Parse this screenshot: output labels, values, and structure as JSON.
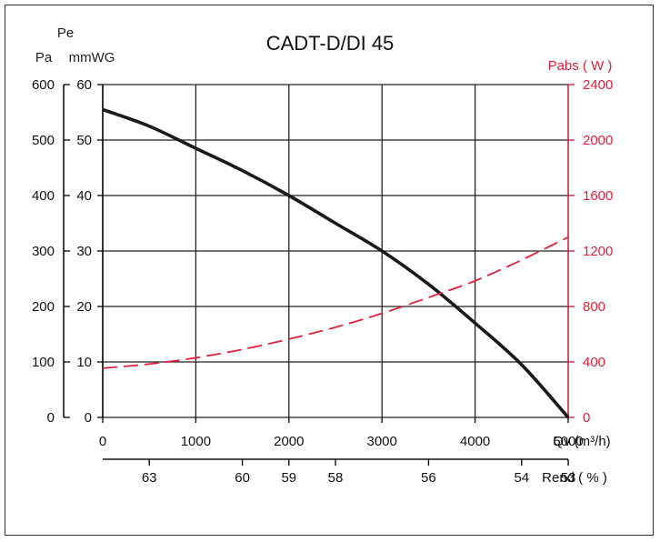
{
  "chart_data": {
    "type": "line",
    "title": "CADT-D/DI  45",
    "x_axis": {
      "label": "Qv (m³/h)",
      "ticks": [
        0,
        1000,
        2000,
        3000,
        4000,
        5000
      ],
      "range": [
        0,
        5000
      ]
    },
    "y_axis_pa": {
      "label_top": "Pa",
      "ticks": [
        0,
        100,
        200,
        300,
        400,
        500,
        600
      ],
      "range": [
        0,
        600
      ]
    },
    "y_axis_mmwg": {
      "label_top": "Pe",
      "label_bottom": "mmWG",
      "ticks": [
        0,
        10,
        20,
        30,
        40,
        50,
        60
      ],
      "range": [
        0,
        60
      ]
    },
    "y_axis_power": {
      "label": "Pabs ( W )",
      "ticks": [
        0,
        400,
        800,
        1200,
        1600,
        2000,
        2400
      ],
      "range": [
        0,
        2400
      ],
      "color": "#e0203a"
    },
    "efficiency_axis": {
      "label": "Rend ( % )",
      "marks": [
        {
          "q": 500,
          "value": "63"
        },
        {
          "q": 1500,
          "value": "60"
        },
        {
          "q": 2000,
          "value": "59"
        },
        {
          "q": 2500,
          "value": "58"
        },
        {
          "q": 3500,
          "value": "56"
        },
        {
          "q": 4500,
          "value": "54"
        },
        {
          "q": 5000,
          "value": "53"
        }
      ]
    },
    "grid": true,
    "series": [
      {
        "axis": "pressure",
        "color": "#1a1a1a",
        "style": "solid",
        "x": [
          0,
          500,
          1000,
          1500,
          2000,
          2500,
          3000,
          3500,
          4000,
          4500,
          5000
        ],
        "y": [
          555,
          525,
          485,
          445,
          400,
          350,
          300,
          240,
          170,
          95,
          0
        ]
      },
      {
        "axis": "power",
        "color": "#e0203a",
        "style": "dashed",
        "x": [
          0,
          500,
          1000,
          1500,
          2000,
          2500,
          3000,
          3500,
          4000,
          4500,
          5000
        ],
        "y": [
          355,
          385,
          430,
          490,
          565,
          650,
          750,
          865,
          985,
          1135,
          1300
        ]
      }
    ]
  }
}
